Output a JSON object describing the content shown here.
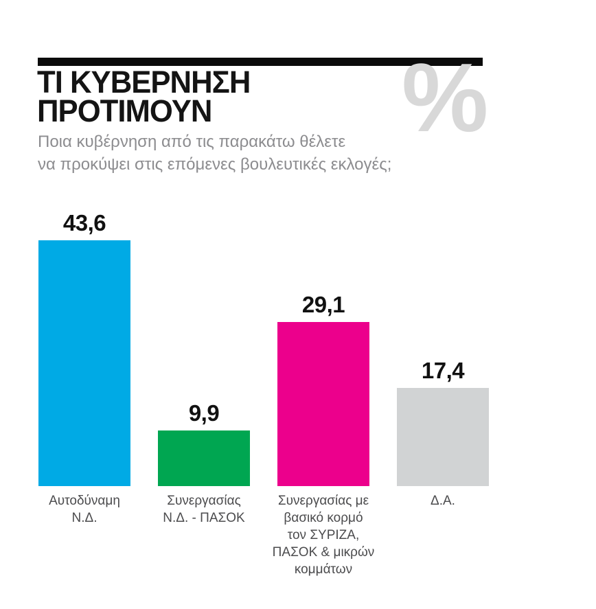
{
  "header": {
    "title_lines": [
      "ΤΙ ΚΥΒΕΡΝΗΣΗ",
      "ΠΡΟΤΙΜΟΥΝ"
    ],
    "percent_watermark": "%",
    "subtitle_lines": [
      "Ποια κυβέρνηση από τις παρακάτω θέλετε",
      "να προκύψει στις επόμενες βουλευτικές εκλογές;"
    ]
  },
  "chart_data": {
    "type": "bar",
    "title": "ΤΙ ΚΥΒΕΡΝΗΣΗ ΠΡΟΤΙΜΟΥΝ",
    "subtitle": "Ποια κυβέρνηση από τις παρακάτω θέλετε να προκύψει στις επόμενες βουλευτικές εκλογές;",
    "unit": "%",
    "categories": [
      "Αυτοδύναμη Ν.Δ.",
      "Συνεργασίας Ν.Δ. - ΠΑΣΟΚ",
      "Συνεργασίας με βασικό κορμό τον ΣΥΡΙΖΑ, ΠΑΣΟΚ & μικρών κομμάτων",
      "Δ.Α."
    ],
    "values": [
      43.6,
      9.9,
      29.1,
      17.4
    ],
    "value_labels": [
      "43,6",
      "9,9",
      "29,1",
      "17,4"
    ],
    "colors": [
      "#00AAE5",
      "#00A651",
      "#EC008C",
      "#D1D3D4"
    ],
    "ylim": [
      0,
      50
    ],
    "grid": false,
    "legend": false
  },
  "bars": [
    {
      "value_label": "43,6",
      "label_lines": [
        "Αυτοδύναμη",
        "Ν.Δ."
      ]
    },
    {
      "value_label": "9,9",
      "label_lines": [
        "Συνεργασίας",
        "Ν.Δ. - ΠΑΣΟΚ"
      ]
    },
    {
      "value_label": "29,1",
      "label_lines": [
        "Συνεργασίας με",
        "βασικό κορμό",
        "τον ΣΥΡΙΖΑ,",
        "ΠΑΣΟΚ & μικρών",
        "κομμάτων"
      ]
    },
    {
      "value_label": "17,4",
      "label_lines": [
        "Δ.Α."
      ]
    }
  ],
  "accent_colors": {
    "rule": "#0B0B0B",
    "title_text": "#141414",
    "watermark": "#D8D8D8",
    "subtitle_text": "#8C8C8F",
    "category_text": "#4B4B4D"
  }
}
